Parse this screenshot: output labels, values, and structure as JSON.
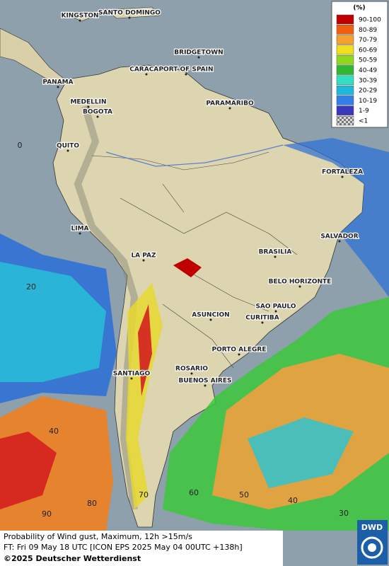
{
  "legend": {
    "title": "(%)",
    "items": [
      {
        "label": "90-100",
        "color": "#c00000"
      },
      {
        "label": "80-89",
        "color": "#f06010"
      },
      {
        "label": "70-79",
        "color": "#f5a030"
      },
      {
        "label": "60-69",
        "color": "#f0e020"
      },
      {
        "label": "50-59",
        "color": "#90d820"
      },
      {
        "label": "40-49",
        "color": "#30b830"
      },
      {
        "label": "30-39",
        "color": "#30e0c0"
      },
      {
        "label": "20-29",
        "color": "#20b8d8"
      },
      {
        "label": "10-19",
        "color": "#3080e8"
      },
      {
        "label": "1-9",
        "color": "#3838b8"
      },
      {
        "label": "<1",
        "color": "url(#chk)"
      }
    ]
  },
  "cities": [
    "KINGSTON",
    "SANTO DOMINGO",
    "BRIDGETOWN",
    "CARACAS",
    "PORT OF SPAIN",
    "PANAMA",
    "MEDELLIN",
    "BOGOTA",
    "PARAMARIBO",
    "QUITO",
    "FORTALEZA",
    "LIMA",
    "SALVADOR",
    "BRASILIA",
    "LA PAZ",
    "BELO HORIZONTE",
    "SAO PAULO",
    "ASUNCION",
    "CURITIBA",
    "PORTO ALEGRE",
    "ROSARIO",
    "SANTIAGO",
    "BUENOS AIRES"
  ],
  "latitude_labels": [
    0,
    20,
    40
  ],
  "longitude_labels": [
    90,
    80,
    70,
    60,
    50,
    40,
    30
  ],
  "footer": {
    "line1": "Probability of Wind gust, Maximum, 12h >15m/s",
    "line2": "FT: Fri 09 May 18 UTC [ICON EPS 2025 May 04 00UTC +138h]",
    "copyright": "©2025 Deutscher Wetterdienst"
  },
  "logo": "DWD"
}
